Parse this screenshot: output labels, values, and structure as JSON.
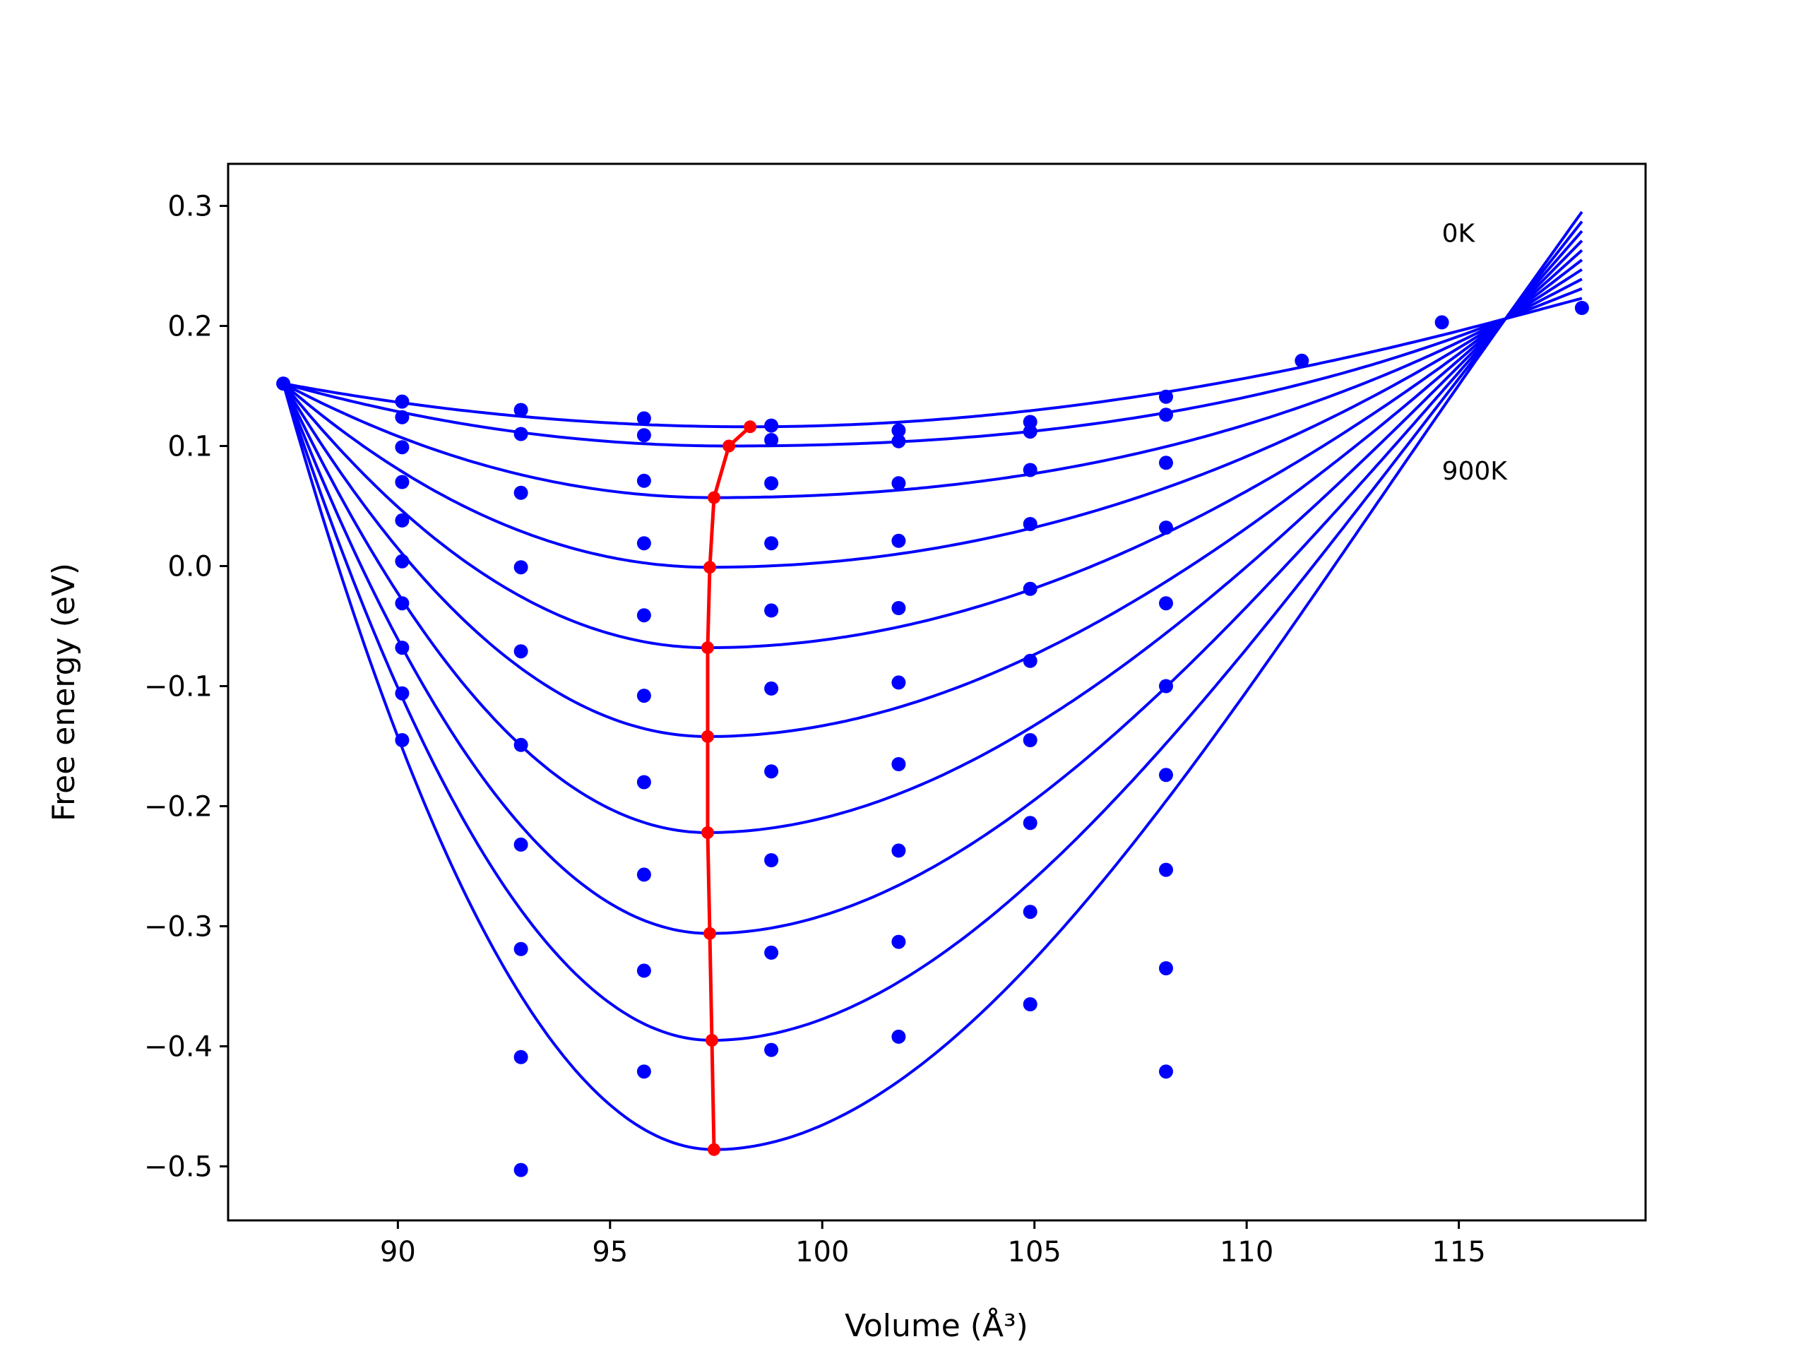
{
  "chart_data": {
    "type": "line",
    "title": "",
    "xlabel": "Volume (Å³)",
    "ylabel": "Free energy (eV)",
    "xlim": [
      86.0,
      119.4
    ],
    "ylim": [
      -0.545,
      0.335
    ],
    "xticks": [
      90,
      95,
      100,
      105,
      110,
      115
    ],
    "xtick_labels": [
      "90",
      "95",
      "100",
      "105",
      "110",
      "115"
    ],
    "yticks": [
      0.3,
      0.2,
      0.1,
      0.0,
      -0.1,
      -0.2,
      -0.3,
      -0.4,
      -0.5
    ],
    "ytick_labels": [
      "0.3",
      "0.2",
      "0.1",
      "0.0",
      "−0.1",
      "−0.2",
      "−0.3",
      "−0.4",
      "−0.5"
    ],
    "grid": false,
    "legend": "none",
    "annotations": [
      {
        "text": "0K",
        "x": 114.6,
        "y": 0.27
      },
      {
        "text": "900K",
        "x": 114.6,
        "y": 0.072
      }
    ],
    "colors": {
      "curves": "#0000ff",
      "points": "#0000ff",
      "minimum_line": "#ff0000"
    },
    "x_points": [
      87.3,
      90.1,
      92.9,
      95.8,
      98.8,
      101.8,
      104.9,
      108.1,
      111.3,
      114.6,
      117.9
    ],
    "curves": [
      {
        "label": "0K",
        "x_min": 98.3,
        "y_min": 0.116,
        "y_left": 0.152,
        "y_right_end": 0.223
      },
      {
        "x_min": 97.8,
        "y_min": 0.1,
        "y_left": 0.152,
        "y_right_end": 0.231
      },
      {
        "x_min": 97.45,
        "y_min": 0.057,
        "y_left": 0.152,
        "y_right_end": 0.239
      },
      {
        "x_min": 97.35,
        "y_min": -0.001,
        "y_left": 0.152,
        "y_right_end": 0.247
      },
      {
        "x_min": 97.3,
        "y_min": -0.068,
        "y_left": 0.152,
        "y_right_end": 0.255
      },
      {
        "x_min": 97.3,
        "y_min": -0.142,
        "y_left": 0.152,
        "y_right_end": 0.263
      },
      {
        "x_min": 97.3,
        "y_min": -0.222,
        "y_left": 0.152,
        "y_right_end": 0.271
      },
      {
        "x_min": 97.35,
        "y_min": -0.306,
        "y_left": 0.152,
        "y_right_end": 0.279
      },
      {
        "x_min": 97.4,
        "y_min": -0.395,
        "y_left": 0.152,
        "y_right_end": 0.287
      },
      {
        "label": "900K",
        "x_min": 97.45,
        "y_min": -0.486,
        "y_left": 0.152,
        "y_right_end": 0.295
      }
    ],
    "points": [
      {
        "x": 87.3,
        "y": 0.152
      },
      {
        "x": 90.1,
        "y": 0.137
      },
      {
        "x": 90.1,
        "y": 0.124
      },
      {
        "x": 90.1,
        "y": 0.099
      },
      {
        "x": 90.1,
        "y": 0.07
      },
      {
        "x": 90.1,
        "y": 0.038
      },
      {
        "x": 90.1,
        "y": 0.004
      },
      {
        "x": 90.1,
        "y": -0.031
      },
      {
        "x": 90.1,
        "y": -0.068
      },
      {
        "x": 90.1,
        "y": -0.106
      },
      {
        "x": 90.1,
        "y": -0.145
      },
      {
        "x": 92.9,
        "y": 0.13
      },
      {
        "x": 92.9,
        "y": 0.11
      },
      {
        "x": 92.9,
        "y": 0.061
      },
      {
        "x": 92.9,
        "y": -0.001
      },
      {
        "x": 92.9,
        "y": -0.071
      },
      {
        "x": 92.9,
        "y": -0.149
      },
      {
        "x": 92.9,
        "y": -0.232
      },
      {
        "x": 92.9,
        "y": -0.319
      },
      {
        "x": 92.9,
        "y": -0.409
      },
      {
        "x": 92.9,
        "y": -0.503
      },
      {
        "x": 95.8,
        "y": 0.123
      },
      {
        "x": 95.8,
        "y": 0.109
      },
      {
        "x": 95.8,
        "y": 0.071
      },
      {
        "x": 95.8,
        "y": 0.019
      },
      {
        "x": 95.8,
        "y": -0.041
      },
      {
        "x": 95.8,
        "y": -0.108
      },
      {
        "x": 95.8,
        "y": -0.18
      },
      {
        "x": 95.8,
        "y": -0.257
      },
      {
        "x": 95.8,
        "y": -0.337
      },
      {
        "x": 95.8,
        "y": -0.421
      },
      {
        "x": 98.8,
        "y": 0.117
      },
      {
        "x": 98.8,
        "y": 0.105
      },
      {
        "x": 98.8,
        "y": 0.069
      },
      {
        "x": 98.8,
        "y": 0.019
      },
      {
        "x": 98.8,
        "y": -0.037
      },
      {
        "x": 98.8,
        "y": -0.102
      },
      {
        "x": 98.8,
        "y": -0.171
      },
      {
        "x": 98.8,
        "y": -0.245
      },
      {
        "x": 98.8,
        "y": -0.322
      },
      {
        "x": 98.8,
        "y": -0.403
      },
      {
        "x": 101.8,
        "y": 0.113
      },
      {
        "x": 101.8,
        "y": 0.104
      },
      {
        "x": 101.8,
        "y": 0.069
      },
      {
        "x": 101.8,
        "y": 0.021
      },
      {
        "x": 101.8,
        "y": -0.035
      },
      {
        "x": 101.8,
        "y": -0.097
      },
      {
        "x": 101.8,
        "y": -0.165
      },
      {
        "x": 101.8,
        "y": -0.237
      },
      {
        "x": 101.8,
        "y": -0.313
      },
      {
        "x": 101.8,
        "y": -0.392
      },
      {
        "x": 104.9,
        "y": 0.12
      },
      {
        "x": 104.9,
        "y": 0.112
      },
      {
        "x": 104.9,
        "y": 0.08
      },
      {
        "x": 104.9,
        "y": 0.035
      },
      {
        "x": 104.9,
        "y": -0.019
      },
      {
        "x": 104.9,
        "y": -0.079
      },
      {
        "x": 104.9,
        "y": -0.145
      },
      {
        "x": 104.9,
        "y": -0.214
      },
      {
        "x": 104.9,
        "y": -0.288
      },
      {
        "x": 104.9,
        "y": -0.365
      },
      {
        "x": 108.1,
        "y": 0.141
      },
      {
        "x": 108.1,
        "y": 0.126
      },
      {
        "x": 108.1,
        "y": 0.086
      },
      {
        "x": 108.1,
        "y": 0.032
      },
      {
        "x": 108.1,
        "y": -0.031
      },
      {
        "x": 108.1,
        "y": -0.1
      },
      {
        "x": 108.1,
        "y": -0.174
      },
      {
        "x": 108.1,
        "y": -0.253
      },
      {
        "x": 108.1,
        "y": -0.335
      },
      {
        "x": 108.1,
        "y": -0.421
      },
      {
        "x": 111.3,
        "y": 0.171
      },
      {
        "x": 114.6,
        "y": 0.203
      },
      {
        "x": 117.9,
        "y": 0.215
      }
    ],
    "minimum_line": [
      {
        "x": 98.3,
        "y": 0.116
      },
      {
        "x": 97.8,
        "y": 0.1
      },
      {
        "x": 97.45,
        "y": 0.057
      },
      {
        "x": 97.35,
        "y": -0.001
      },
      {
        "x": 97.3,
        "y": -0.068
      },
      {
        "x": 97.3,
        "y": -0.142
      },
      {
        "x": 97.3,
        "y": -0.222
      },
      {
        "x": 97.35,
        "y": -0.306
      },
      {
        "x": 97.4,
        "y": -0.395
      },
      {
        "x": 97.45,
        "y": -0.486
      }
    ]
  }
}
